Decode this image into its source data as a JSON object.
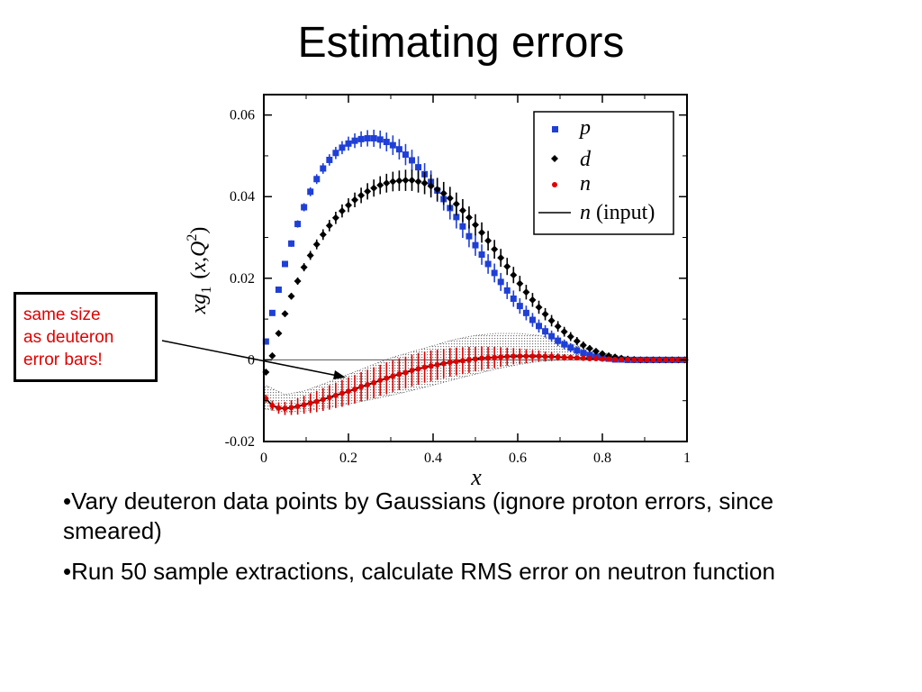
{
  "slide": {
    "title": "Estimating errors",
    "callout": [
      "same size",
      "as deuteron",
      "error bars!"
    ],
    "bullets": [
      "•Vary deuteron data points by Gaussians (ignore proton errors, since smeared)",
      "•Run 50 sample extractions, calculate RMS error on neutron function"
    ]
  },
  "chart_data": {
    "type": "scatter",
    "xlabel": "x",
    "ylabel_parts": [
      "x",
      "g",
      "1",
      "(",
      "x",
      ",",
      "Q",
      "2",
      ")"
    ],
    "xlim": [
      0,
      1
    ],
    "ylim": [
      -0.02,
      0.065
    ],
    "xticks": [
      "0",
      "0.2",
      "0.4",
      "0.6",
      "0.8",
      "1"
    ],
    "yticks": [
      "-0.02",
      "0",
      "0.02",
      "0.04",
      "0.06"
    ],
    "legend": {
      "placement": "top-right",
      "entries": [
        {
          "name": "p",
          "marker": "square",
          "color": "#1f3fd6"
        },
        {
          "name": "d",
          "marker": "diamond",
          "color": "#000000"
        },
        {
          "name": "n",
          "marker": "circle",
          "color": "#e00000"
        },
        {
          "name": "n",
          "suffix": "(input)",
          "marker": "line",
          "color": "#000000"
        }
      ]
    },
    "colors": {
      "p": "#1f3fd6",
      "d": "#000000",
      "n": "#e00000",
      "band": "#999999"
    },
    "x": [
      0.005,
      0.02,
      0.035,
      0.05,
      0.065,
      0.08,
      0.095,
      0.11,
      0.125,
      0.14,
      0.155,
      0.17,
      0.185,
      0.2,
      0.215,
      0.23,
      0.245,
      0.26,
      0.275,
      0.29,
      0.305,
      0.32,
      0.335,
      0.35,
      0.365,
      0.38,
      0.395,
      0.41,
      0.425,
      0.44,
      0.455,
      0.47,
      0.485,
      0.5,
      0.515,
      0.53,
      0.545,
      0.56,
      0.575,
      0.59,
      0.605,
      0.62,
      0.635,
      0.65,
      0.665,
      0.68,
      0.695,
      0.71,
      0.725,
      0.74,
      0.755,
      0.77,
      0.785,
      0.8,
      0.815,
      0.83,
      0.845,
      0.86,
      0.875,
      0.89,
      0.905,
      0.92,
      0.935,
      0.95,
      0.965,
      0.98,
      0.995
    ],
    "series": [
      {
        "name": "p",
        "values": [
          0.0045,
          0.0115,
          0.0172,
          0.0235,
          0.0285,
          0.0333,
          0.0374,
          0.0412,
          0.0443,
          0.0469,
          0.049,
          0.0507,
          0.052,
          0.053,
          0.0537,
          0.0541,
          0.0543,
          0.0543,
          0.054,
          0.0534,
          0.0526,
          0.0516,
          0.0503,
          0.0489,
          0.0472,
          0.0455,
          0.0436,
          0.0415,
          0.0394,
          0.0372,
          0.035,
          0.0327,
          0.0303,
          0.0281,
          0.0258,
          0.0235,
          0.0213,
          0.0191,
          0.017,
          0.015,
          0.0132,
          0.0115,
          0.0098,
          0.0083,
          0.007,
          0.0058,
          0.0047,
          0.0038,
          0.003,
          0.0023,
          0.0017,
          0.0012,
          0.0008,
          0.0005,
          0.0003,
          0.0001,
          0.0001,
          0.0,
          0.0,
          0.0,
          0.0,
          0.0,
          0.0,
          0.0,
          0.0,
          0.0,
          0.0
        ],
        "errors": [
          0.0004,
          0.0005,
          0.0006,
          0.0007,
          0.0008,
          0.0009,
          0.001,
          0.0011,
          0.0012,
          0.0013,
          0.0014,
          0.0015,
          0.0016,
          0.0017,
          0.0018,
          0.0019,
          0.002,
          0.0021,
          0.0022,
          0.0023,
          0.0024,
          0.0025,
          0.0026,
          0.0026,
          0.0027,
          0.0027,
          0.0028,
          0.0028,
          0.0028,
          0.0028,
          0.0028,
          0.0028,
          0.0027,
          0.0026,
          0.0025,
          0.0024,
          0.0023,
          0.0022,
          0.0021,
          0.002,
          0.0019,
          0.0018,
          0.0017,
          0.0016,
          0.0015,
          0.0014,
          0.0013,
          0.0012,
          0.0011,
          0.001,
          0.0009,
          0.0008,
          0.0007,
          0.0006,
          0.0005,
          0.0005,
          0.0004,
          0.0004,
          0.0003,
          0.0003,
          0.0003,
          0.0002,
          0.0002,
          0.0002,
          0.0002,
          0.0002,
          0.0002
        ]
      },
      {
        "name": "d",
        "values": [
          -0.003,
          0.001,
          0.0065,
          0.0113,
          0.0156,
          0.0193,
          0.0227,
          0.0256,
          0.0283,
          0.0307,
          0.0329,
          0.0348,
          0.0365,
          0.0379,
          0.0392,
          0.0403,
          0.0413,
          0.0421,
          0.0428,
          0.0433,
          0.0437,
          0.0439,
          0.044,
          0.044,
          0.0437,
          0.0433,
          0.0426,
          0.0418,
          0.0408,
          0.0396,
          0.0382,
          0.0366,
          0.0349,
          0.0331,
          0.0312,
          0.0292,
          0.0271,
          0.025,
          0.0229,
          0.0208,
          0.0187,
          0.0166,
          0.0147,
          0.0129,
          0.0112,
          0.0096,
          0.0082,
          0.0069,
          0.0057,
          0.0046,
          0.0036,
          0.0028,
          0.0021,
          0.0015,
          0.001,
          0.0007,
          0.0004,
          0.0002,
          0.0001,
          0.0,
          0.0,
          0.0,
          0.0,
          0.0,
          0.0,
          0.0,
          0.0
        ],
        "errors": [
          0.0004,
          0.0005,
          0.0006,
          0.0007,
          0.0008,
          0.0009,
          0.001,
          0.0011,
          0.0012,
          0.0013,
          0.0014,
          0.0015,
          0.0016,
          0.0017,
          0.0018,
          0.0019,
          0.002,
          0.0021,
          0.0022,
          0.0023,
          0.0024,
          0.0025,
          0.0026,
          0.0026,
          0.0027,
          0.0027,
          0.0028,
          0.0028,
          0.0028,
          0.0028,
          0.0028,
          0.0028,
          0.0027,
          0.0026,
          0.0025,
          0.0024,
          0.0023,
          0.0022,
          0.0021,
          0.002,
          0.0019,
          0.0018,
          0.0017,
          0.0016,
          0.0015,
          0.0014,
          0.0013,
          0.0012,
          0.0011,
          0.001,
          0.0009,
          0.0008,
          0.0007,
          0.0006,
          0.0005,
          0.0005,
          0.0004,
          0.0004,
          0.0003,
          0.0003,
          0.0003,
          0.0002,
          0.0002,
          0.0002,
          0.0002,
          0.0002,
          0.0002
        ]
      },
      {
        "name": "n",
        "values": [
          -0.0095,
          -0.0112,
          -0.0118,
          -0.0119,
          -0.0117,
          -0.0114,
          -0.011,
          -0.0106,
          -0.0102,
          -0.0097,
          -0.0092,
          -0.0087,
          -0.0082,
          -0.0077,
          -0.0072,
          -0.0066,
          -0.0061,
          -0.0056,
          -0.005,
          -0.0045,
          -0.004,
          -0.0035,
          -0.0031,
          -0.0026,
          -0.0022,
          -0.0018,
          -0.0015,
          -0.0012,
          -0.0009,
          -0.0006,
          -0.0004,
          -0.0002,
          0.0,
          0.0002,
          0.0004,
          0.0005,
          0.0006,
          0.0007,
          0.0008,
          0.0009,
          0.0009,
          0.0009,
          0.0009,
          0.0009,
          0.0008,
          0.0008,
          0.0007,
          0.0006,
          0.0006,
          0.0005,
          0.0004,
          0.0003,
          0.0003,
          0.0002,
          0.0002,
          0.0001,
          0.0001,
          0.0001,
          0.0,
          0.0,
          0.0,
          0.0,
          0.0,
          0.0,
          0.0,
          0.0,
          0.0
        ],
        "errors": [
          0.001,
          0.0012,
          0.0014,
          0.0016,
          0.0018,
          0.002,
          0.0022,
          0.0024,
          0.0026,
          0.0028,
          0.003,
          0.0031,
          0.0033,
          0.0034,
          0.0035,
          0.0036,
          0.0037,
          0.0038,
          0.0038,
          0.0039,
          0.0039,
          0.0039,
          0.0039,
          0.0039,
          0.0039,
          0.0038,
          0.0038,
          0.0037,
          0.0036,
          0.0035,
          0.0034,
          0.0033,
          0.0032,
          0.003,
          0.0029,
          0.0027,
          0.0026,
          0.0024,
          0.0022,
          0.002,
          0.0019,
          0.0017,
          0.0015,
          0.0014,
          0.0012,
          0.0011,
          0.0009,
          0.0008,
          0.0007,
          0.0006,
          0.0005,
          0.0004,
          0.0004,
          0.0003,
          0.0003,
          0.0002,
          0.0002,
          0.0002,
          0.0001,
          0.0001,
          0.0001,
          0.0001,
          0.0001,
          0.0001,
          0.0001,
          0.0001,
          0.0001
        ]
      }
    ],
    "band": {
      "x": [
        0.0,
        0.05,
        0.1,
        0.15,
        0.2,
        0.25,
        0.3,
        0.35,
        0.4,
        0.45,
        0.5,
        0.55,
        0.6,
        0.65,
        0.7,
        0.75,
        0.8,
        0.85,
        0.9,
        0.95,
        1.0
      ],
      "upper": [
        -0.006,
        -0.0085,
        -0.0075,
        -0.0055,
        -0.0035,
        -0.0015,
        0.0005,
        0.002,
        0.0035,
        0.005,
        0.006,
        0.0065,
        0.0065,
        0.006,
        0.0048,
        0.0032,
        0.0018,
        0.0008,
        0.0003,
        0.0001,
        0.0
      ],
      "lower": [
        -0.012,
        -0.0128,
        -0.0125,
        -0.0117,
        -0.0108,
        -0.0098,
        -0.0087,
        -0.0075,
        -0.0062,
        -0.0048,
        -0.0035,
        -0.0022,
        -0.0012,
        -0.0004,
        0.0,
        0.0,
        0.0,
        0.0,
        0.0,
        0.0,
        0.0
      ]
    }
  }
}
